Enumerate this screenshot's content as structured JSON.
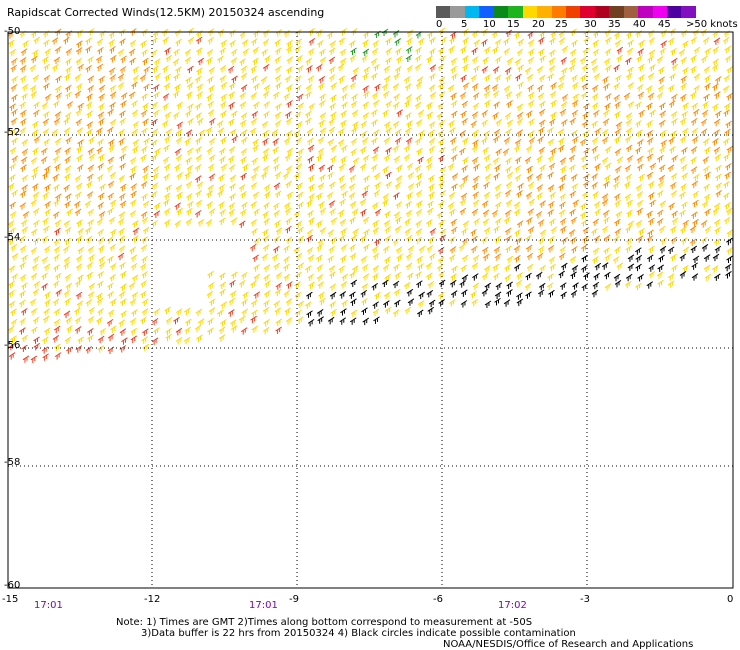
{
  "title": "Rapidscat Corrected Winds(12.5KM) 20150324 ascending",
  "legend": {
    "labels": [
      "0",
      "5",
      "10",
      "15",
      "20",
      "25",
      "30",
      "35",
      "40",
      "45",
      ">50 knots"
    ],
    "colors": [
      "#5a5a5a",
      "#9a9a9a",
      "#00b8f0",
      "#1060ff",
      "#0a8a1a",
      "#1eb41e",
      "#ffd800",
      "#ffb000",
      "#ff7a00",
      "#f04000",
      "#e00030",
      "#b00020",
      "#704020",
      "#a06040",
      "#c000c0",
      "#f000f0",
      "#5000a0",
      "#8010c0"
    ]
  },
  "lat_labels": [
    "-50",
    "-52",
    "-54",
    "-56",
    "-58",
    "-60"
  ],
  "lon_labels": [
    "-15",
    "-12",
    "-9",
    "-6",
    "-3",
    "0"
  ],
  "time_labels": [
    "17:01",
    "17:01",
    "17:02"
  ],
  "notes": {
    "line1": "Note: 1) Times are GMT 2)Times along bottom correspond to measurement at -50S",
    "line2": "3)Data buffer is 22 hrs from 20150324 4) Black circles indicate possible contamination",
    "credit": "NOAA/NESDIS/Office of Research and Applications"
  },
  "map": {
    "lat_range": [
      -60,
      -50
    ],
    "lon_range": [
      -15,
      0
    ],
    "swath_wind_colors": {
      "dominant": "#ffd800",
      "strong": "#ff8c00",
      "very_strong": "#f04020",
      "contaminated": "#000000",
      "weak": "#1a9a1a"
    }
  }
}
